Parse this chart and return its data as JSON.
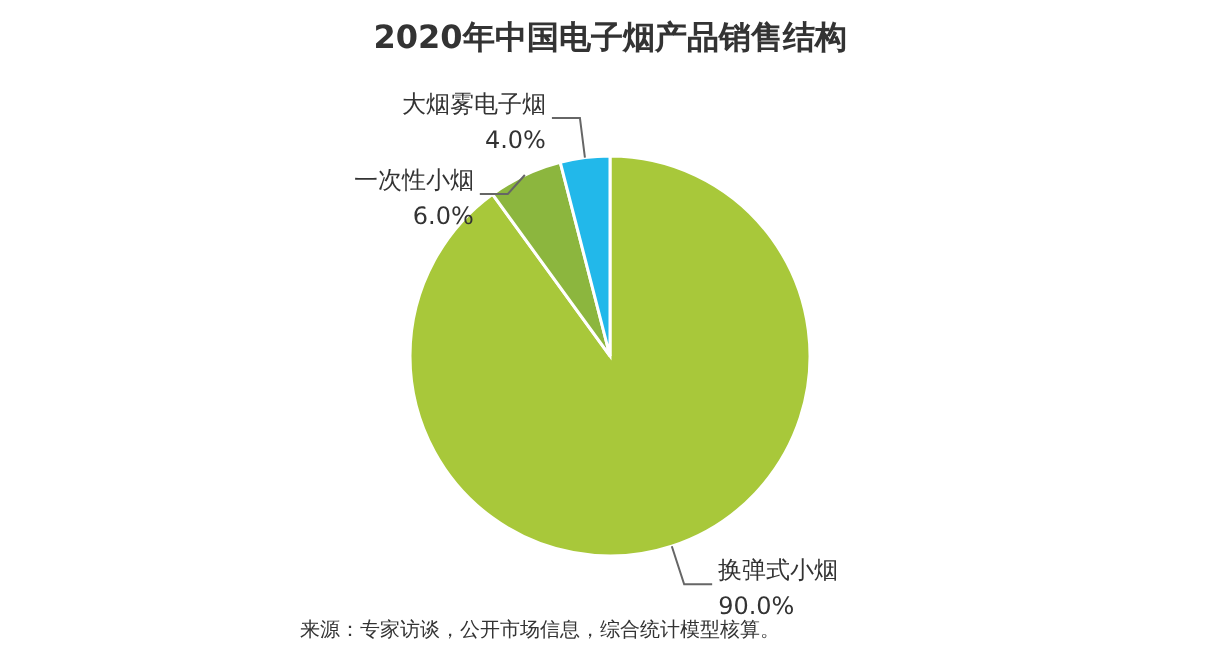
{
  "chart_data": {
    "type": "pie",
    "title": "2020年中国电子烟产品销售结构",
    "categories": [
      "换弹式小烟",
      "一次性小烟",
      "大烟雾电子烟"
    ],
    "values": [
      90,
      6,
      4
    ],
    "colors": [
      "#a8c83a",
      "#8cb63e",
      "#22b8ea"
    ],
    "value_labels": [
      "90.0%",
      "6.0%",
      "4.0%"
    ],
    "annotations": [
      "来源：专家访谈，公开市场信息，综合统计模型核算。"
    ]
  }
}
